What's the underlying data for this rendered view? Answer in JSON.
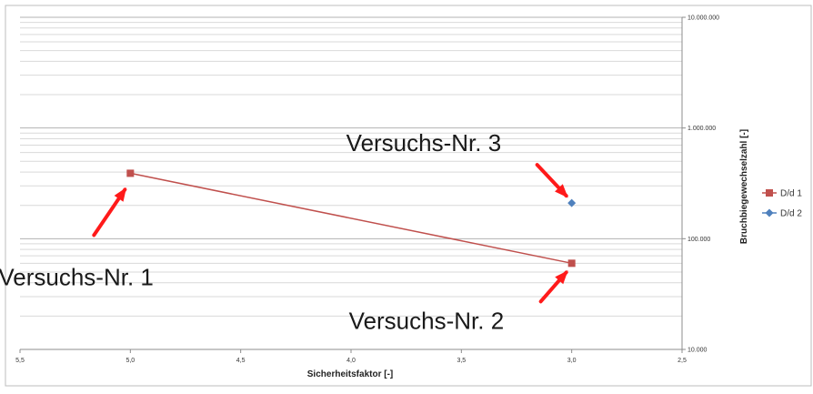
{
  "chart_data": {
    "type": "scatter",
    "title": "",
    "xlabel": "Sicherheitsfaktor [-]",
    "ylabel": "Bruchbiegewechselzahl [-]",
    "xlim": [
      5.5,
      2.5
    ],
    "x_reversed": true,
    "ylim": [
      10000,
      10000000
    ],
    "y_scale": "log",
    "y_axis_side": "right",
    "grid": true,
    "legend_position": "right",
    "x_ticks": [
      5.5,
      5.0,
      4.5,
      4.0,
      3.5,
      3.0,
      2.5
    ],
    "x_tick_labels": [
      "5,5",
      "5,0",
      "4,5",
      "4,0",
      "3,5",
      "3,0",
      "2,5"
    ],
    "y_ticks": [
      10000,
      100000,
      1000000,
      10000000
    ],
    "y_tick_labels": [
      "10.000",
      "100.000",
      "1.000.000",
      "10.000.000"
    ],
    "series": [
      {
        "name": "D/d 1",
        "color": "#c0504d",
        "marker": "square",
        "line": true,
        "points": [
          {
            "x": 5.0,
            "y": 390000
          },
          {
            "x": 3.0,
            "y": 60000
          }
        ]
      },
      {
        "name": "D/d 2",
        "color": "#4f81bd",
        "marker": "diamond",
        "line": false,
        "points": [
          {
            "x": 3.0,
            "y": 210000
          }
        ]
      }
    ],
    "annotations": [
      {
        "text": "Versuchs-Nr. 1",
        "x": 5.0,
        "y": 390000,
        "series": "D/d 1"
      },
      {
        "text": "Versuchs-Nr. 2",
        "x": 3.0,
        "y": 60000,
        "series": "D/d 1"
      },
      {
        "text": "Versuchs-Nr. 3",
        "x": 3.0,
        "y": 210000,
        "series": "D/d 2"
      }
    ],
    "annotation_arrow_color": "#ff1a1a"
  }
}
